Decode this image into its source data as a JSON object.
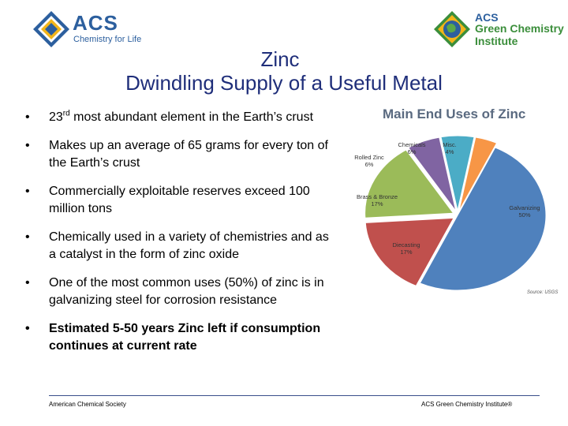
{
  "logos": {
    "acs_name": "ACS",
    "acs_tagline": "Chemistry for Life",
    "gci_line1": "ACS",
    "gci_line2": "Green Chemistry",
    "gci_line3": "Institute"
  },
  "title": {
    "line1": "Zinc",
    "line2": "Dwindling Supply of a Useful Metal"
  },
  "bullets": [
    {
      "pre": "23",
      "sup": "rd",
      "text": " most abundant element in the Earth’s crust"
    },
    {
      "text": "Makes up an average of 65 grams for every ton of the Earth’s crust"
    },
    {
      "text": "Commercially exploitable reserves exceed 100 million tons"
    },
    {
      "text": "Chemically used in a variety of chemistries and as a catalyst in the form of zinc oxide"
    },
    {
      "text": "One of the most common uses (50%) of zinc is in galvanizing steel for corrosion resistance"
    },
    {
      "text": "Estimated 5-50 years Zinc left if consumption continues at current rate",
      "bold": true
    }
  ],
  "chart_data": {
    "type": "pie",
    "title": "Main End Uses of Zinc",
    "source": "Source: USGS",
    "slices": [
      {
        "label": "Galvanizing",
        "pct": "50%",
        "value": 50,
        "color": "#4f81bd"
      },
      {
        "label": "Diecasting",
        "pct": "17%",
        "value": 17,
        "color": "#c0504d"
      },
      {
        "label": "Brass & Bronze",
        "pct": "17%",
        "value": 17,
        "color": "#9bbb59"
      },
      {
        "label": "Rolled Zinc",
        "pct": "6%",
        "value": 6,
        "color": "#8064a2"
      },
      {
        "label": "Chemicals",
        "pct": "6%",
        "value": 6,
        "color": "#4bacc6"
      },
      {
        "label": "Misc.",
        "pct": "4%",
        "value": 4,
        "color": "#f79646"
      }
    ]
  },
  "footer": {
    "left": "American Chemical Society",
    "right": "ACS Green Chemistry Institute®"
  }
}
